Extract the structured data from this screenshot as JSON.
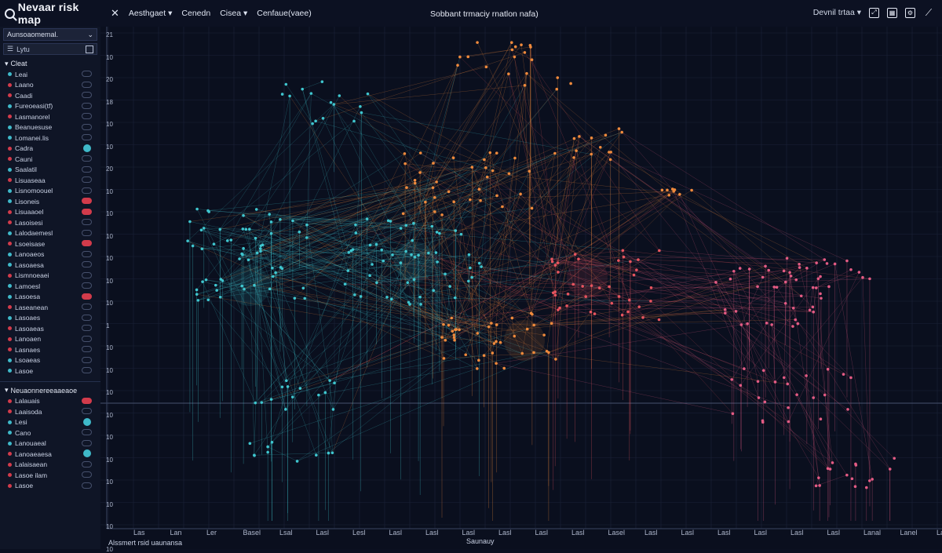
{
  "app": {
    "title": "Nevaar risk map",
    "menu": [
      "Aesthgaet",
      "Cenedn",
      "Cisea",
      "Cenfaue(vaee)"
    ],
    "center_title": "Sobbant trmaciy rnatlon nafa)",
    "right_label": "Devnil trtaa"
  },
  "sidebar": {
    "dropdown": "Aunsoaomemal.",
    "search_placeholder": "Lytu",
    "group1_label": "Cleat",
    "rows1": [
      {
        "label": "Leai",
        "color": "#3fb9c9",
        "badge": "none"
      },
      {
        "label": "Laano",
        "color": "#d23b4b",
        "badge": "none"
      },
      {
        "label": "Caadi",
        "color": "#d23b4b",
        "badge": "none"
      },
      {
        "label": "Fureoeasi(tf)",
        "color": "#3fb9c9",
        "badge": "none"
      },
      {
        "label": "Lasmanorel",
        "color": "#d23b4b",
        "badge": "none"
      },
      {
        "label": "Beanuesuse",
        "color": "#3fb9c9",
        "badge": "none"
      },
      {
        "label": "Lomanei.lis",
        "color": "#3fb9c9",
        "badge": "none"
      },
      {
        "label": "Cadra",
        "color": "#d23b4b",
        "badge": "cyan"
      },
      {
        "label": "Cauni",
        "color": "#d23b4b",
        "badge": "none"
      },
      {
        "label": "Saalatil",
        "color": "#3fb9c9",
        "badge": "none"
      },
      {
        "label": "Lisuaseaa",
        "color": "#d23b4b",
        "badge": "none"
      },
      {
        "label": "Lisnomoouel",
        "color": "#3fb9c9",
        "badge": "none"
      },
      {
        "label": "Lisoneis",
        "color": "#3fb9c9",
        "badge": "red"
      },
      {
        "label": "Lisuaaoel",
        "color": "#d23b4b",
        "badge": "red"
      },
      {
        "label": "Lasoisesi",
        "color": "#d23b4b",
        "badge": "none"
      },
      {
        "label": "Lalodaemesl",
        "color": "#3fb9c9",
        "badge": "none"
      },
      {
        "label": "Lsoeisase",
        "color": "#d23b4b",
        "badge": "red"
      },
      {
        "label": "Lanoaeos",
        "color": "#3fb9c9",
        "badge": "none"
      },
      {
        "label": "Lasoaesa",
        "color": "#3fb9c9",
        "badge": "none"
      },
      {
        "label": "Lismnoeaei",
        "color": "#d23b4b",
        "badge": "none"
      },
      {
        "label": "Lamoesl",
        "color": "#3fb9c9",
        "badge": "none"
      },
      {
        "label": "Lasoesa",
        "color": "#3fb9c9",
        "badge": "red"
      },
      {
        "label": "Laseanean",
        "color": "#d23b4b",
        "badge": "none"
      },
      {
        "label": "Lasoaes",
        "color": "#3fb9c9",
        "badge": "none"
      },
      {
        "label": "Lasoaeas",
        "color": "#d23b4b",
        "badge": "none"
      },
      {
        "label": "Lanoaen",
        "color": "#d23b4b",
        "badge": "none"
      },
      {
        "label": "Lasnaes",
        "color": "#d23b4b",
        "badge": "none"
      },
      {
        "label": "Lsoaeas",
        "color": "#3fb9c9",
        "badge": "none"
      },
      {
        "label": "Lasoe",
        "color": "#3fb9c9",
        "badge": "none"
      }
    ],
    "group2_label": "Neuaonnereeaaeaoe",
    "rows2": [
      {
        "label": "Lalauais",
        "color": "#d23b4b",
        "badge": "red"
      },
      {
        "label": "Laaisoda",
        "color": "#d23b4b",
        "badge": "none"
      },
      {
        "label": "Lesi",
        "color": "#3fb9c9",
        "badge": "cyan"
      },
      {
        "label": "Cano",
        "color": "#3fb9c9",
        "badge": "none"
      },
      {
        "label": "Lanouaeal",
        "color": "#3fb9c9",
        "badge": "none"
      },
      {
        "label": "Lanoaeaesa",
        "color": "#d23b4b",
        "badge": "cyan"
      },
      {
        "label": "Lalaisaean",
        "color": "#d23b4b",
        "badge": "none"
      },
      {
        "label": "Lasoe ilam",
        "color": "#d23b4b",
        "badge": "none"
      },
      {
        "label": "Lasoe",
        "color": "#d23b4b",
        "badge": "none"
      }
    ]
  },
  "plot": {
    "y_labels": [
      "21",
      "10",
      "20",
      "18",
      "10",
      "10",
      "20",
      "10",
      "10",
      "10",
      "10",
      "10",
      "10",
      "1",
      "10",
      "10",
      "10",
      "10",
      "10",
      "10",
      "10",
      "10",
      "10",
      "10"
    ],
    "x_labels": [
      "Las",
      "Lan",
      "Ler",
      "Basel",
      "Lsal",
      "Lasl",
      "Lesl",
      "Lasl",
      "Lasl",
      "Lasl",
      "Lasl",
      "Lasl",
      "Lasl",
      "Lasel",
      "Lasl",
      "Lasl",
      "Lasl",
      "Lasl",
      "Lasl",
      "Lasl",
      "Lanal",
      "Lanel",
      "Lasl"
    ],
    "x_title": "Saunauy",
    "corner_label": "Alssmert rsid   uaunansa",
    "colors": {
      "cyan": "#3fc6cf",
      "orange": "#f08a3c",
      "red": "#e8555f",
      "pink": "#e45b84"
    }
  }
}
